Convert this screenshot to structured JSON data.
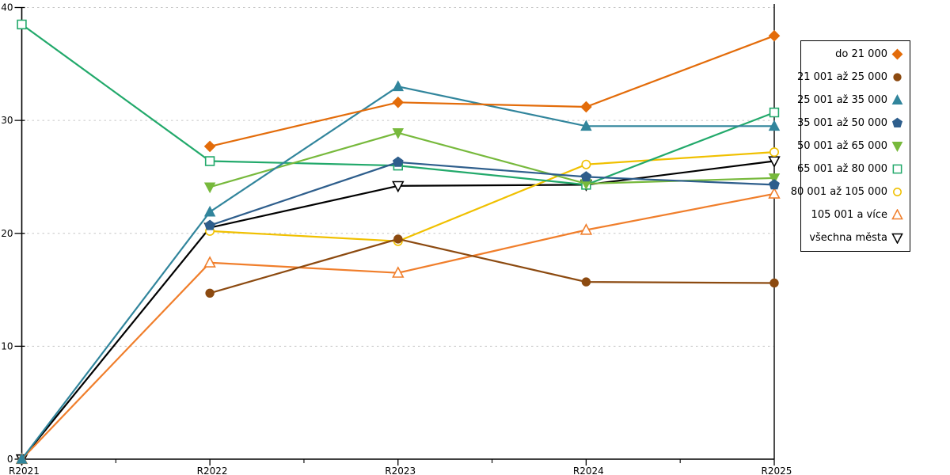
{
  "chart_data": {
    "type": "line",
    "title": "",
    "xlabel": "",
    "ylabel": "",
    "x": [
      "R2021",
      "R2022",
      "R2023",
      "R2024",
      "R2025"
    ],
    "ylim": [
      0,
      40
    ],
    "yticks": [
      0,
      10,
      20,
      30,
      40
    ],
    "grid": "horizontal dashed gridlines at 10,20,30,40",
    "gridline_color": "#C6C6C6",
    "axis_color": "#000000",
    "legend_position": "right",
    "series": [
      {
        "name": "do 21 000",
        "color": "#E36C0A",
        "marker": "diamond",
        "fill": "solid",
        "values": [
          null,
          27.7,
          31.6,
          31.2,
          37.5
        ]
      },
      {
        "name": "21 001 až 25 000",
        "color": "#8C4A10",
        "marker": "circle",
        "fill": "solid",
        "values": [
          null,
          14.7,
          19.5,
          15.7,
          15.6
        ]
      },
      {
        "name": "25 001 až 35 000",
        "color": "#31859C",
        "marker": "triangle-up",
        "fill": "solid",
        "values": [
          0,
          21.9,
          33.0,
          29.5,
          29.5
        ]
      },
      {
        "name": "35 001 až 50 000",
        "color": "#2E5E8C",
        "marker": "pentagon",
        "fill": "solid",
        "values": [
          null,
          20.7,
          26.3,
          25.0,
          24.3
        ]
      },
      {
        "name": "50 001 až 65 000",
        "color": "#77B93C",
        "marker": "triangle-down",
        "fill": "solid",
        "values": [
          null,
          24.1,
          28.9,
          24.4,
          24.9
        ]
      },
      {
        "name": "65 001 až 80 000",
        "color": "#22A96B",
        "marker": "square",
        "fill": "open",
        "values": [
          38.5,
          26.4,
          26.0,
          24.3,
          30.7
        ]
      },
      {
        "name": "80 001 až 105 000",
        "color": "#F0C000",
        "marker": "circle",
        "fill": "open",
        "values": [
          null,
          20.2,
          19.3,
          26.1,
          27.2
        ]
      },
      {
        "name": "105 001 a více",
        "color": "#F07E2B",
        "marker": "triangle-up",
        "fill": "open",
        "values": [
          0,
          17.4,
          16.5,
          20.3,
          23.5
        ]
      },
      {
        "name": "všechna města",
        "color": "#000000",
        "marker": "triangle-down",
        "fill": "open",
        "values": [
          0,
          20.5,
          24.2,
          24.3,
          26.4
        ]
      }
    ]
  }
}
